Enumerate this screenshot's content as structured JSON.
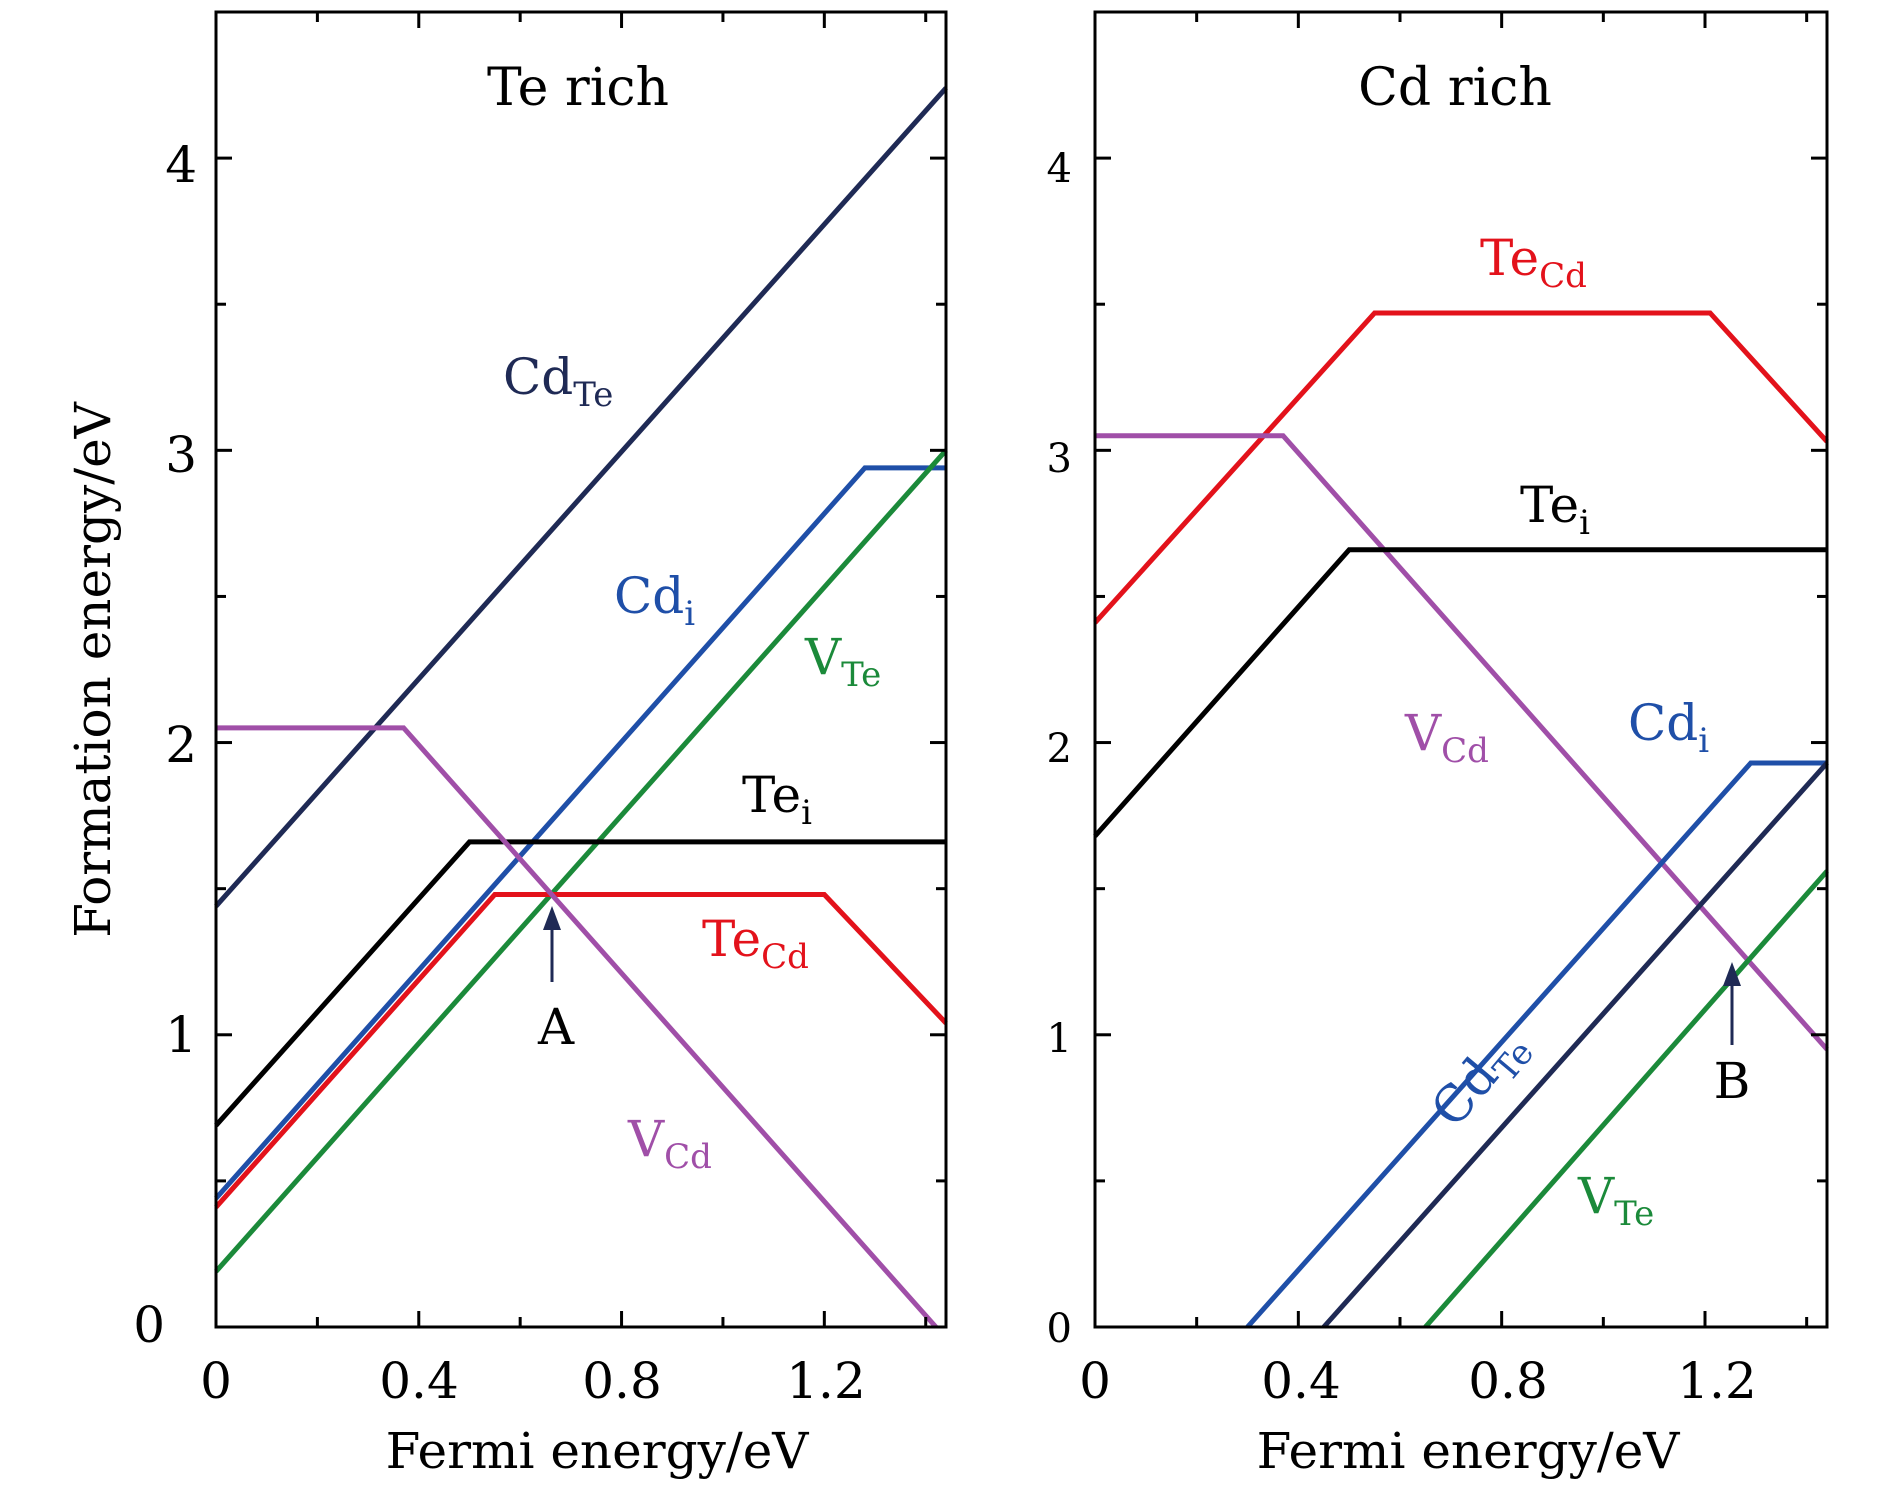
{
  "chart_data": [
    {
      "type": "line",
      "title": "Te rich",
      "xlabel": "Fermi energy/eV",
      "ylabel": "Formation energy/eV",
      "xlim": [
        0,
        1.44
      ],
      "ylim": [
        0,
        4.5
      ],
      "xticks": [
        0,
        0.4,
        0.8,
        1.2
      ],
      "xtick_labels": [
        "0",
        "0.4",
        "0.8",
        "1.2"
      ],
      "yticks": [
        0,
        1,
        2,
        3,
        4
      ],
      "ytick_labels": [
        "0",
        "1",
        "2",
        "3",
        "4"
      ],
      "series": [
        {
          "key": "cd-te",
          "name": "Cd",
          "sub": "Te",
          "color": "#1f2a55",
          "points": [
            [
              0,
              1.44
            ],
            [
              1.44,
              4.24
            ]
          ]
        },
        {
          "key": "cd-i",
          "name": "Cd",
          "sub": "i",
          "color": "#1f4fa8",
          "points": [
            [
              0,
              0.44
            ],
            [
              1.28,
              2.94
            ],
            [
              1.44,
              2.94
            ]
          ]
        },
        {
          "key": "v-te",
          "name": "V",
          "sub": "Te",
          "color": "#1b8a3a",
          "points": [
            [
              0,
              0.19
            ],
            [
              1.44,
              3.0
            ]
          ]
        },
        {
          "key": "te-i",
          "name": "Te",
          "sub": "i",
          "color": "#000000",
          "points": [
            [
              0,
              0.69
            ],
            [
              0.5,
              1.66
            ],
            [
              1.44,
              1.66
            ]
          ]
        },
        {
          "key": "te-cd",
          "name": "Te",
          "sub": "Cd",
          "color": "#e3121b",
          "points": [
            [
              0,
              0.41
            ],
            [
              0.55,
              1.48
            ],
            [
              1.2,
              1.48
            ],
            [
              1.44,
              1.04
            ]
          ]
        },
        {
          "key": "v-cd",
          "name": "V",
          "sub": "Cd",
          "color": "#a04fa8",
          "points": [
            [
              0,
              2.05
            ],
            [
              0.37,
              2.05
            ],
            [
              1.42,
              0.0
            ]
          ]
        }
      ],
      "annotations": [
        {
          "key": "a",
          "label": "A",
          "x": 0.67,
          "y": 1.47
        }
      ]
    },
    {
      "type": "line",
      "title": "Cd rich",
      "xlabel": "Fermi energy/eV",
      "ylabel": "",
      "xlim": [
        0,
        1.44
      ],
      "ylim": [
        0,
        4.5
      ],
      "xticks": [
        0,
        0.4,
        0.8,
        1.2
      ],
      "xtick_labels": [
        "0",
        "0.4",
        "0.8",
        "1.2"
      ],
      "yticks": [
        0,
        1,
        2,
        3,
        4
      ],
      "ytick_labels": [
        "0",
        "1",
        "2",
        "3",
        "4"
      ],
      "series": [
        {
          "key": "te-cd",
          "name": "Te",
          "sub": "Cd",
          "color": "#e3121b",
          "points": [
            [
              0,
              2.41
            ],
            [
              0.55,
              3.47
            ],
            [
              1.21,
              3.47
            ],
            [
              1.44,
              3.03
            ]
          ]
        },
        {
          "key": "v-cd",
          "name": "V",
          "sub": "Cd",
          "color": "#a04fa8",
          "points": [
            [
              0,
              3.05
            ],
            [
              0.37,
              3.05
            ],
            [
              1.44,
              0.95
            ]
          ]
        },
        {
          "key": "te-i",
          "name": "Te",
          "sub": "i",
          "color": "#000000",
          "points": [
            [
              0,
              1.68
            ],
            [
              0.5,
              2.66
            ],
            [
              1.44,
              2.66
            ]
          ]
        },
        {
          "key": "cd-i",
          "name": "Cd",
          "sub": "i",
          "color": "#1f4fa8",
          "points": [
            [
              0.3,
              0.0
            ],
            [
              1.29,
              1.93
            ],
            [
              1.44,
              1.93
            ]
          ]
        },
        {
          "key": "cd-te",
          "name": "Cd",
          "sub": "Te",
          "color": "#1f2a55",
          "points": [
            [
              0.45,
              0.0
            ],
            [
              1.44,
              1.93
            ]
          ]
        },
        {
          "key": "v-te",
          "name": "V",
          "sub": "Te",
          "color": "#1b8a3a",
          "points": [
            [
              0.65,
              0.0
            ],
            [
              1.44,
              1.56
            ]
          ]
        }
      ],
      "annotations": [
        {
          "key": "b",
          "label": "B",
          "x": 1.29,
          "y": 1.25
        }
      ]
    }
  ]
}
